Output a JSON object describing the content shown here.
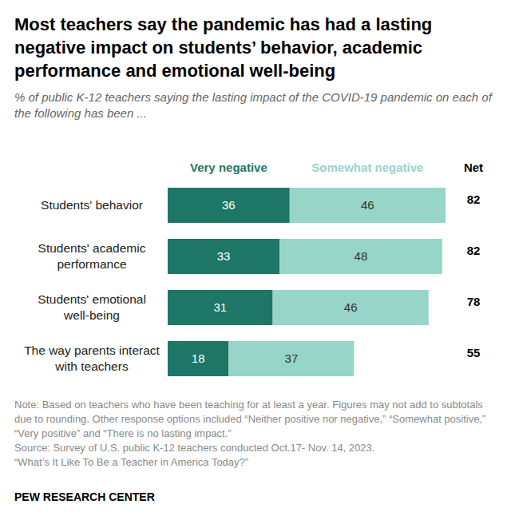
{
  "chart_data": {
    "type": "bar",
    "orientation": "horizontal",
    "stacked": true,
    "data_labels": true,
    "tick_labels": "y",
    "title": "Most teachers say the pandemic has had a lasting negative impact on students’ behavior, academic performance and emotional well-being",
    "subtitle": "% of public K-12 teachers saying the lasting impact of the COVID-19 pandemic on each of the following has been ...",
    "categories": [
      "Students' behavior",
      "Students' academic performance",
      "Students' emotional well-being",
      "The way parents interact with teachers"
    ],
    "series": [
      {
        "name": "Very negative",
        "color": "#1d7666",
        "values": [
          36,
          33,
          31,
          18
        ]
      },
      {
        "name": "Somewhat negative",
        "color": "#97d5c8",
        "values": [
          46,
          48,
          46,
          37
        ]
      }
    ],
    "net": {
      "name": "Net",
      "values": [
        82,
        82,
        78,
        55
      ]
    },
    "xlim": [
      0,
      82
    ],
    "note": "Note: Based on teachers who have been teaching for at least a year. Figures may not add to subtotals due to rounding. Other response options included “Neither positive nor negative,” “Somewhat positive,” “Very positive” and “There is no lasting impact.”",
    "source": "Source: Survey of U.S. public K-12 teachers conducted Oct.17- Nov. 14, 2023.",
    "report": "“What’s It Like To Be a Teacher in America Today?”",
    "credit": "PEW RESEARCH CENTER"
  }
}
